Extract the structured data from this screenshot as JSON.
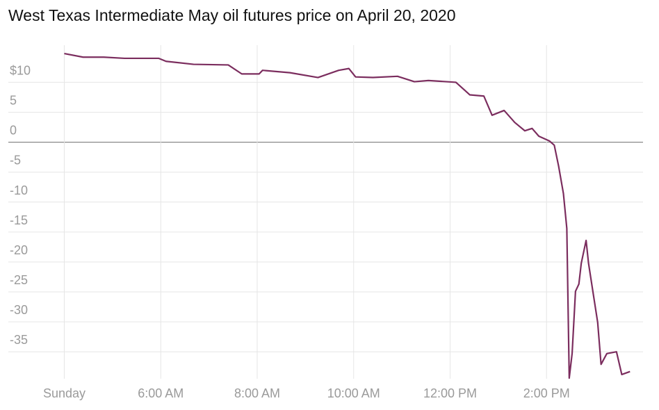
{
  "chart_data": {
    "type": "line",
    "title": "West Texas Intermediate May oil futures price on April 20, 2020",
    "x": [
      4.0,
      4.39,
      4.82,
      5.25,
      5.96,
      6.11,
      6.68,
      7.4,
      7.68,
      8.04,
      8.11,
      8.68,
      9.26,
      9.69,
      9.9,
      10.04,
      10.4,
      10.91,
      11.26,
      11.55,
      12.12,
      12.41,
      12.7,
      12.87,
      13.12,
      13.34,
      13.55,
      13.7,
      13.84,
      14.06,
      14.16,
      14.25,
      14.35,
      14.42,
      14.47,
      14.53,
      14.6,
      14.67,
      14.72,
      14.82,
      14.87,
      14.96,
      15.06,
      15.13,
      15.25,
      15.45,
      15.56,
      15.73
    ],
    "values": [
      14.8,
      14.2,
      14.2,
      14.0,
      14.0,
      13.5,
      13.0,
      12.9,
      11.4,
      11.4,
      12.0,
      11.6,
      10.8,
      12.0,
      12.3,
      10.9,
      10.8,
      11.0,
      10.1,
      10.3,
      10.0,
      7.9,
      7.7,
      4.5,
      5.3,
      3.3,
      1.9,
      2.3,
      1.0,
      0.2,
      -0.5,
      -4.0,
      -8.6,
      -14.4,
      -39.4,
      -35.3,
      -24.9,
      -23.7,
      -20.2,
      -16.4,
      -20.2,
      -24.9,
      -30.1,
      -37.1,
      -35.3,
      -35.0,
      -38.8,
      -38.3
    ],
    "color": "#7b2d5e",
    "xlim": [
      2.84,
      16.0
    ],
    "xticks": [
      {
        "value": 4,
        "label": "Sunday"
      },
      {
        "value": 6,
        "label": "6:00 AM"
      },
      {
        "value": 8,
        "label": "8:00 AM"
      },
      {
        "value": 10,
        "label": "10:00 AM"
      },
      {
        "value": 12,
        "label": "12:00 PM"
      },
      {
        "value": 14,
        "label": "2:00 PM"
      }
    ],
    "ylim": [
      -39.5,
      16.2
    ],
    "yticks": [
      {
        "value": 10,
        "label": "$10"
      },
      5,
      0,
      -5,
      -10,
      -15,
      -20,
      -25,
      -30,
      -35
    ],
    "grid": true
  }
}
